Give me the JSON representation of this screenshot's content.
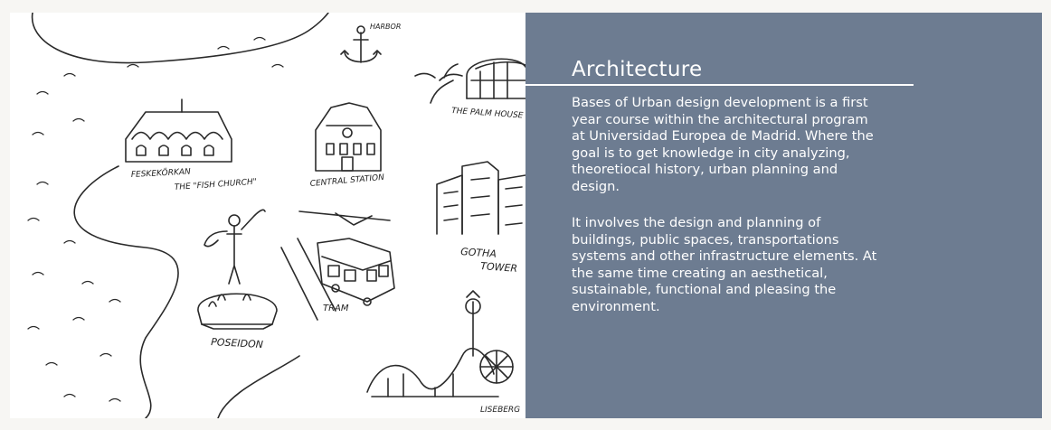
{
  "sketch": {
    "labels": {
      "harbor": "HARBOR",
      "palm_house": "THE PALM HOUSE",
      "feskekorkan": "FESKEKÖRKAN",
      "fish_church": "THE \"FISH CHURCH\"",
      "central_station": "CENTRAL STATION",
      "gotha": "GOTHA",
      "tower": "TOWER",
      "tram": "TRAM",
      "poseidon": "POSEIDON",
      "liseberg": "LISEBERG"
    }
  },
  "panel": {
    "title": "Architecture",
    "paragraph_1": "Bases of Urban design development is a first year course within the architectural program at Universidad Europea de Madrid. Where the goal is to get knowledge in city analyzing, theoretiocal history, urban planning and design.",
    "paragraph_2": "It involves the design and planning of buildings, public spaces, transportations systems and other infrastructure elements. At the same time creating an aesthetical, sustainable, functional and pleasing the environment.",
    "background_color": "#6d7c91",
    "text_color": "#ffffff"
  }
}
